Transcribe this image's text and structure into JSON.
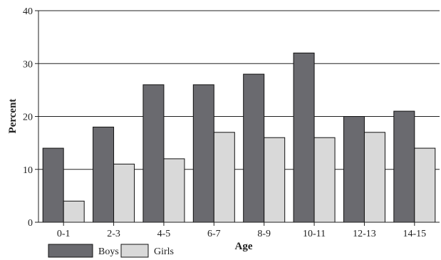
{
  "chart_data": {
    "type": "bar",
    "categories": [
      "0-1",
      "2-3",
      "4-5",
      "6-7",
      "8-9",
      "10-11",
      "12-13",
      "14-15"
    ],
    "series": [
      {
        "name": "Boys",
        "values": [
          14,
          18,
          26,
          26,
          28,
          32,
          20,
          21
        ],
        "color": "#6a6a6f"
      },
      {
        "name": "Girls",
        "values": [
          4,
          11,
          12,
          17,
          16,
          16,
          17,
          14
        ],
        "color": "#d9d9d9"
      }
    ],
    "xlabel": "Age",
    "ylabel": "Percent",
    "ylim": [
      0,
      40
    ],
    "yticks": [
      0,
      10,
      20,
      30,
      40
    ],
    "grid": true,
    "legend_position": "bottom-left"
  }
}
